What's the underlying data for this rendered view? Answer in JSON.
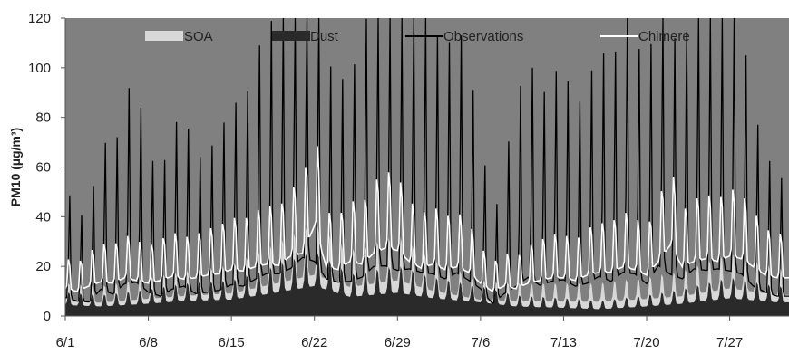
{
  "chart_data": {
    "type": "area",
    "title": "",
    "xlabel": "",
    "ylabel": "PM10 (µg/m³)",
    "ylim": [
      0,
      120
    ],
    "yticks": [
      0,
      20,
      40,
      60,
      80,
      100,
      120
    ],
    "xlim": [
      "6/1",
      "7/31"
    ],
    "xticks": [
      "6/1",
      "6/8",
      "6/15",
      "6/22",
      "6/29",
      "7/6",
      "7/13",
      "7/20",
      "7/27"
    ],
    "grid": false,
    "legend": "top",
    "colors": {
      "plot_background": "#808080",
      "SOA": "#d8d8d8",
      "Dust": "#2a2a2a",
      "Observations": "#000000",
      "Chimere": "#ffffff"
    },
    "series": [
      {
        "name": "SOA",
        "kind": "stacked-area",
        "x": [
          "6/1",
          "6/4",
          "6/8",
          "6/11",
          "6/15",
          "6/18",
          "6/22",
          "6/25",
          "6/29",
          "7/2",
          "7/6",
          "7/9",
          "7/13",
          "7/16",
          "7/20",
          "7/23",
          "7/27",
          "7/31"
        ],
        "values": [
          3,
          3,
          4,
          4,
          5,
          7,
          9,
          8,
          10,
          6,
          2,
          4,
          5,
          6,
          6,
          6,
          8,
          6
        ]
      },
      {
        "name": "Dust",
        "kind": "area",
        "x": [
          "6/1",
          "6/4",
          "6/8",
          "6/11",
          "6/15",
          "6/18",
          "6/22",
          "6/25",
          "6/29",
          "7/2",
          "7/6",
          "7/9",
          "7/13",
          "7/16",
          "7/20",
          "7/23",
          "7/27",
          "7/31"
        ],
        "values": [
          8,
          7,
          9,
          11,
          12,
          16,
          22,
          14,
          17,
          13,
          10,
          7,
          6,
          5,
          7,
          9,
          13,
          10
        ]
      },
      {
        "name": "Observations",
        "kind": "line",
        "x": [
          "6/1",
          "6/2",
          "6/3",
          "6/4",
          "6/5",
          "6/6",
          "6/7",
          "6/8",
          "6/9",
          "6/10",
          "6/11",
          "6/12",
          "6/13",
          "6/14",
          "6/15",
          "6/16",
          "6/17",
          "6/18",
          "6/19",
          "6/20",
          "6/21",
          "6/22",
          "6/23",
          "6/24",
          "6/25",
          "6/26",
          "6/27",
          "6/28",
          "6/29",
          "6/30",
          "7/1",
          "7/2",
          "7/3",
          "7/4",
          "7/5",
          "7/6",
          "7/7",
          "7/8",
          "7/9",
          "7/10",
          "7/11",
          "7/12",
          "7/13",
          "7/14",
          "7/15",
          "7/16",
          "7/17",
          "7/18",
          "7/19",
          "7/20",
          "7/21",
          "7/22",
          "7/23",
          "7/24",
          "7/25",
          "7/26",
          "7/27",
          "7/28",
          "7/29",
          "7/30",
          "7/31"
        ],
        "values": [
          38,
          30,
          28,
          54,
          44,
          65,
          68,
          48,
          40,
          54,
          60,
          45,
          48,
          52,
          63,
          60,
          74,
          86,
          85,
          96,
          118,
          110,
          75,
          68,
          70,
          78,
          100,
          101,
          92,
          95,
          88,
          85,
          75,
          87,
          72,
          55,
          25,
          45,
          60,
          78,
          62,
          70,
          73,
          60,
          66,
          80,
          70,
          88,
          85,
          65,
          102,
          84,
          75,
          95,
          92,
          95,
          91,
          85,
          60,
          48,
          40
        ]
      },
      {
        "name": "Chimere",
        "kind": "line",
        "x": [
          "6/1",
          "6/2",
          "6/3",
          "6/4",
          "6/5",
          "6/6",
          "6/7",
          "6/8",
          "6/9",
          "6/10",
          "6/11",
          "6/12",
          "6/13",
          "6/14",
          "6/15",
          "6/16",
          "6/17",
          "6/18",
          "6/19",
          "6/20",
          "6/21",
          "6/22",
          "6/23",
          "6/24",
          "6/25",
          "6/26",
          "6/27",
          "6/28",
          "6/29",
          "6/30",
          "7/1",
          "7/2",
          "7/3",
          "7/4",
          "7/5",
          "7/6",
          "7/7",
          "7/8",
          "7/9",
          "7/10",
          "7/11",
          "7/12",
          "7/13",
          "7/14",
          "7/15",
          "7/16",
          "7/17",
          "7/18",
          "7/19",
          "7/20",
          "7/21",
          "7/22",
          "7/23",
          "7/24",
          "7/25",
          "7/26",
          "7/27",
          "7/28",
          "7/29",
          "7/30",
          "7/31"
        ],
        "values": [
          20,
          18,
          22,
          25,
          24,
          28,
          26,
          24,
          26,
          29,
          27,
          28,
          30,
          31,
          34,
          33,
          36,
          38,
          37,
          44,
          46,
          66,
          36,
          34,
          40,
          38,
          46,
          50,
          48,
          40,
          35,
          38,
          34,
          36,
          32,
          24,
          18,
          22,
          20,
          24,
          26,
          28,
          28,
          26,
          30,
          32,
          32,
          36,
          34,
          30,
          40,
          52,
          36,
          40,
          42,
          40,
          44,
          42,
          36,
          30,
          28
        ]
      }
    ]
  }
}
